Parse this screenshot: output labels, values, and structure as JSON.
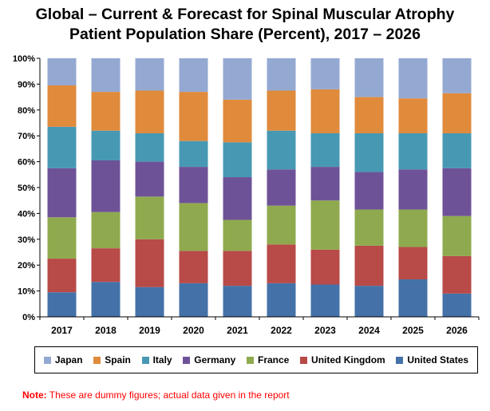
{
  "title_line1": "Global – Current & Forecast for Spinal Muscular Atrophy",
  "title_line2": "Patient Population Share (Percent), 2017 – 2026",
  "note_label": "Note:",
  "note_text": " These are dummy figures; actual data given in the report",
  "chart_data": {
    "type": "bar",
    "stacked": true,
    "title": "Global – Current & Forecast for Spinal Muscular Atrophy Patient Population Share (Percent), 2017 – 2026",
    "xlabel": "",
    "ylabel": "",
    "categories": [
      "2017",
      "2018",
      "2019",
      "2020",
      "2021",
      "2022",
      "2023",
      "2024",
      "2025",
      "2026"
    ],
    "y_ticks": [
      "0%",
      "10%",
      "20%",
      "30%",
      "40%",
      "50%",
      "60%",
      "70%",
      "80%",
      "90%",
      "100%"
    ],
    "ylim": [
      0,
      100
    ],
    "grid": false,
    "legend_position": "bottom",
    "series": [
      {
        "name": "United States",
        "color": "#4472a8",
        "values": [
          9.5,
          13.5,
          11.5,
          13,
          12,
          13,
          12.5,
          12,
          14.5,
          9
        ]
      },
      {
        "name": "United Kingdom",
        "color": "#b84a48",
        "values": [
          13,
          13,
          18.5,
          12.5,
          13.5,
          15,
          13.5,
          15.5,
          12.5,
          14.5
        ]
      },
      {
        "name": "France",
        "color": "#8faa4e",
        "values": [
          16,
          14,
          16.5,
          18.5,
          12,
          15,
          19,
          14,
          14.5,
          15.5
        ]
      },
      {
        "name": "Germany",
        "color": "#6e5298",
        "values": [
          19,
          20,
          13.5,
          14,
          16.5,
          14,
          13,
          14.5,
          15.5,
          18.5
        ]
      },
      {
        "name": "Italy",
        "color": "#4799b3",
        "values": [
          16,
          11.5,
          11,
          10,
          13.5,
          15,
          13,
          15,
          14,
          13.5
        ]
      },
      {
        "name": "Spain",
        "color": "#e08a3c",
        "values": [
          16,
          15,
          16.5,
          19,
          16.5,
          15.5,
          17,
          14,
          13.5,
          15.5
        ]
      },
      {
        "name": "Japan",
        "color": "#94a9d2",
        "values": [
          10.5,
          13,
          12.5,
          13,
          16,
          12.5,
          12,
          15,
          15.5,
          13.5
        ]
      }
    ],
    "legend_order": [
      "Japan",
      "Spain",
      "Italy",
      "Germany",
      "France",
      "United Kingdom",
      "United States"
    ]
  }
}
